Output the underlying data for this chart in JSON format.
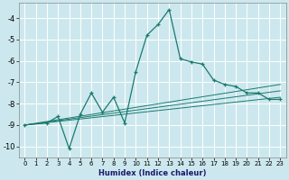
{
  "xlabel": "Humidex (Indice chaleur)",
  "ylabel": "",
  "bg_color": "#cce8ee",
  "grid_color": "#ffffff",
  "line_color": "#1a7a6e",
  "xlim": [
    -0.5,
    23.5
  ],
  "ylim": [
    -10.5,
    -3.3
  ],
  "yticks": [
    -10,
    -9,
    -8,
    -7,
    -6,
    -5,
    -4
  ],
  "xticks": [
    0,
    1,
    2,
    3,
    4,
    5,
    6,
    7,
    8,
    9,
    10,
    11,
    12,
    13,
    14,
    15,
    16,
    17,
    18,
    19,
    20,
    21,
    22,
    23
  ],
  "series": [
    {
      "x": [
        0,
        2,
        3,
        4,
        5,
        6,
        7,
        8,
        9,
        10,
        11,
        12,
        13,
        14,
        15,
        16,
        17,
        18,
        19,
        20,
        21,
        22,
        23
      ],
      "y": [
        -9.0,
        -8.9,
        -8.6,
        -10.1,
        -8.5,
        -7.5,
        -8.4,
        -7.7,
        -8.9,
        -6.5,
        -4.8,
        -4.3,
        -3.6,
        -5.9,
        -6.05,
        -6.15,
        -6.9,
        -7.1,
        -7.2,
        -7.5,
        -7.5,
        -7.8,
        -7.8
      ]
    },
    {
      "x": [
        0,
        23
      ],
      "y": [
        -9.0,
        -7.4
      ]
    },
    {
      "x": [
        0,
        23
      ],
      "y": [
        -9.0,
        -7.7
      ]
    },
    {
      "x": [
        0,
        23
      ],
      "y": [
        -9.0,
        -7.1
      ]
    }
  ]
}
